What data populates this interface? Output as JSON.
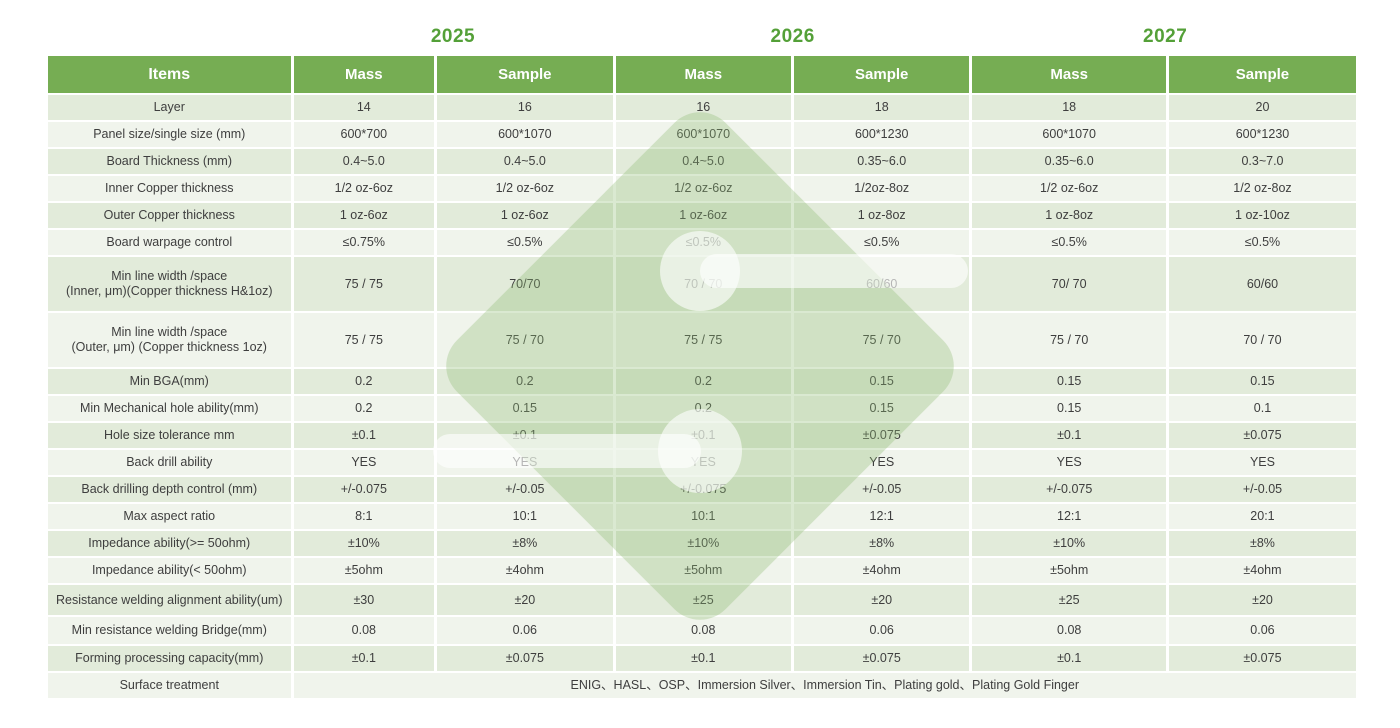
{
  "years": [
    "2025",
    "2026",
    "2027"
  ],
  "colors": {
    "header_green": "#76ad53",
    "year_green": "#54a038",
    "row_sage": "#e2ebda",
    "row_light": "#f0f4ec",
    "watermark_green": "#8fba72",
    "text": "#3e3e3e"
  },
  "table": {
    "items_header": "Items",
    "col_headers": [
      "Mass",
      "Sample",
      "Mass",
      "Sample",
      "Mass",
      "Sample"
    ],
    "rows": [
      {
        "label": "Layer",
        "values": [
          "14",
          "16",
          "16",
          "18",
          "18",
          "20"
        ]
      },
      {
        "label": "Panel size/single size (mm)",
        "values": [
          "600*700",
          "600*1070",
          "600*1070",
          "600*1230",
          "600*1070",
          "600*1230"
        ]
      },
      {
        "label": "Board Thickness (mm)",
        "values": [
          "0.4~5.0",
          "0.4~5.0",
          "0.4~5.0",
          "0.35~6.0",
          "0.35~6.0",
          "0.3~7.0"
        ]
      },
      {
        "label": "Inner Copper thickness",
        "values": [
          "1/2 oz-6oz",
          "1/2 oz-6oz",
          "1/2 oz-6oz",
          "1/2oz-8oz",
          "1/2 oz-6oz",
          "1/2 oz-8oz"
        ]
      },
      {
        "label": "Outer Copper thickness",
        "values": [
          "1 oz-6oz",
          "1 oz-6oz",
          "1 oz-6oz",
          "1 oz-8oz",
          "1 oz-8oz",
          "1 oz-10oz"
        ]
      },
      {
        "label": "Board warpage control",
        "values": [
          "≤0.75%",
          "≤0.5%",
          "≤0.5%",
          "≤0.5%",
          "≤0.5%",
          "≤0.5%"
        ]
      },
      {
        "label": "Min line width /space\n(Inner, μm)(Copper thickness H&1oz)",
        "values": [
          "75 / 75",
          "70/70",
          "70 / 70",
          "60/60",
          "70/ 70",
          "60/60"
        ]
      },
      {
        "label": "Min line width /space\n(Outer, μm)  (Copper thickness 1oz)",
        "values": [
          "75 / 75",
          "75 / 70",
          "75 / 75",
          "75 / 70",
          "75 / 70",
          "70 / 70"
        ]
      },
      {
        "label": "Min BGA(mm)",
        "values": [
          "0.2",
          "0.2",
          "0.2",
          "0.15",
          "0.15",
          "0.15"
        ]
      },
      {
        "label": "Min Mechanical hole ability(mm)",
        "values": [
          "0.2",
          "0.15",
          "0.2",
          "0.15",
          "0.15",
          "0.1"
        ]
      },
      {
        "label": "Hole size tolerance  mm",
        "values": [
          "±0.1",
          "±0.1",
          "±0.1",
          "±0.075",
          "±0.1",
          "±0.075"
        ]
      },
      {
        "label": "Back drill ability",
        "values": [
          "YES",
          "YES",
          "YES",
          "YES",
          "YES",
          "YES"
        ]
      },
      {
        "label": "Back drilling depth control (mm)",
        "values": [
          "+/-0.075",
          "+/-0.05",
          "+/-0.075",
          "+/-0.05",
          "+/-0.075",
          "+/-0.05"
        ]
      },
      {
        "label": "Max aspect ratio",
        "values": [
          "8:1",
          "10:1",
          "10:1",
          "12:1",
          "12:1",
          "20:1"
        ]
      },
      {
        "label": "Impedance ability(>= 50ohm)",
        "values": [
          "±10%",
          "±8%",
          "±10%",
          "±8%",
          "±10%",
          "±8%"
        ]
      },
      {
        "label": "Impedance ability(< 50ohm)",
        "values": [
          "±5ohm",
          "±4ohm",
          "±5ohm",
          "±4ohm",
          "±5ohm",
          "±4ohm"
        ]
      },
      {
        "label": "Resistance welding alignment ability(um)",
        "values": [
          "±30",
          "±20",
          "±25",
          "±20",
          "±25",
          "±20"
        ]
      },
      {
        "label": "Min resistance welding Bridge(mm)",
        "values": [
          "0.08",
          "0.06",
          "0.08",
          "0.06",
          "0.08",
          "0.06"
        ]
      },
      {
        "label": "Forming processing capacity(mm)",
        "values": [
          "±0.1",
          "±0.075",
          "±0.1",
          "±0.075",
          "±0.1",
          "±0.075"
        ]
      },
      {
        "label": "Surface treatment",
        "merged": "ENIG、HASL、OSP、Immersion Silver、Immersion Tin、Plating gold、Plating Gold Finger"
      }
    ]
  },
  "watermark": {
    "icon": "diamond-logo-watermark"
  }
}
